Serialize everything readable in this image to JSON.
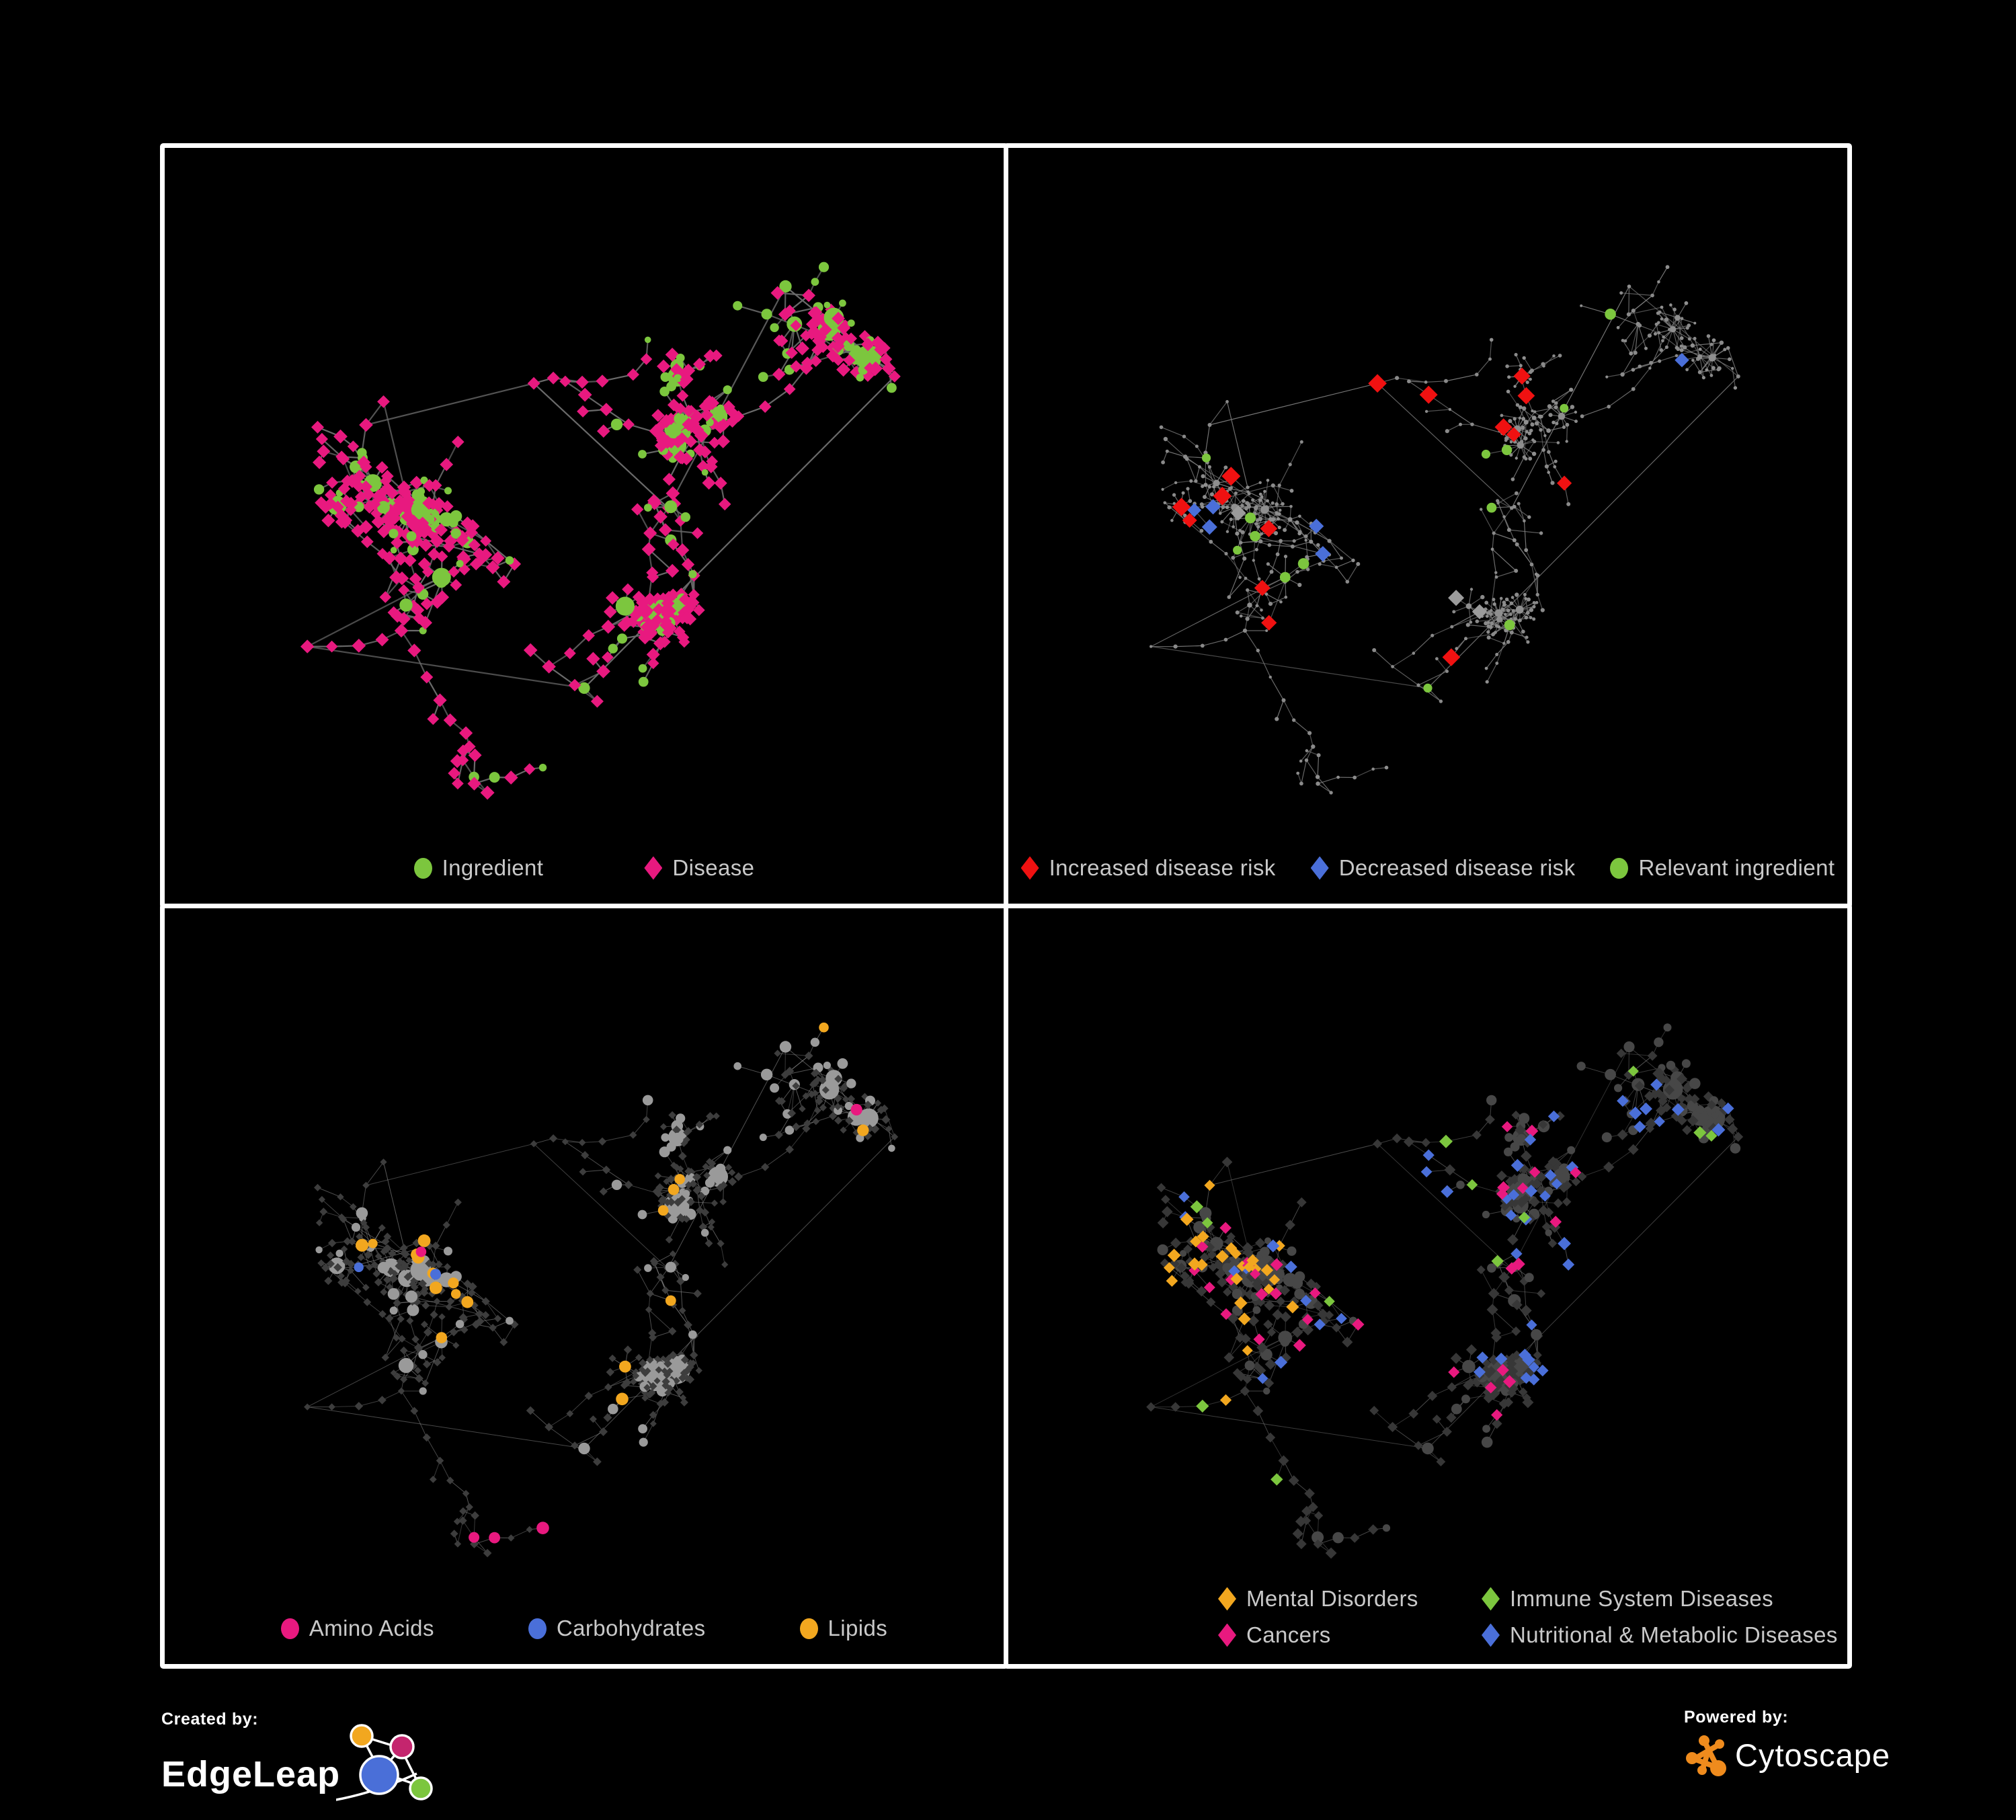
{
  "figure": {
    "background": "#000000",
    "panel_border_color": "#ffffff",
    "legend_text_color": "#c9c9c9"
  },
  "network_layout": {
    "seed": 42,
    "nodes": 540,
    "roots": [
      [
        0.24,
        0.4
      ],
      [
        0.44,
        0.34
      ],
      [
        0.6,
        0.52
      ],
      [
        0.74,
        0.2
      ],
      [
        0.87,
        0.33
      ],
      [
        0.5,
        0.78
      ],
      [
        0.17,
        0.72
      ],
      [
        0.33,
        0.62
      ]
    ],
    "budgets": [
      0.24,
      0.2,
      0.12,
      0.09,
      0.07,
      0.1,
      0.09,
      0.09
    ],
    "recency": 0.45,
    "step": 36,
    "hub_chance": 0.07,
    "fan_min": 5,
    "fan_max": 18,
    "chain_chance": 0.18,
    "extra_edges": 90,
    "max_link": 150,
    "hub_degree": 5,
    "ingredient_ratio": 0.24
  },
  "panels": [
    {
      "name": "ingredient-disease-network",
      "legend": [
        {
          "label": "Ingredient",
          "shape": "circle",
          "color": "#7cc63e"
        },
        {
          "label": "Disease",
          "shape": "diamond",
          "color": "#e8197f"
        }
      ],
      "style": {
        "edge": {
          "color": "#6a6a6a",
          "width": 2.2,
          "opacity": 0.9
        },
        "ingredient": [
          {
            "shape": "circle",
            "color": "#7cc63e",
            "min": 5.5,
            "max": 9,
            "weight": 1,
            "hub_scale": 0.12,
            "top": true
          }
        ],
        "disease": [
          {
            "shape": "diamond",
            "color": "#e8197f",
            "min": 8.5,
            "max": 10.5,
            "weight": 1,
            "top": true
          }
        ]
      }
    },
    {
      "name": "disease-risk-network",
      "legend": [
        {
          "label": "Increased disease risk",
          "shape": "diamond",
          "color": "#f01111"
        },
        {
          "label": "Decreased disease risk",
          "shape": "diamond",
          "color": "#4a6fd9"
        },
        {
          "label": "Relevant ingredient",
          "shape": "circle",
          "color": "#7cc63e"
        }
      ],
      "style": {
        "edge": {
          "color": "#787878",
          "width": 1.2,
          "opacity": 0.8
        },
        "ingredient": [
          {
            "shape": "circle",
            "color": "#8f8f8f",
            "min": 2.4,
            "max": 3.6,
            "weight": 10,
            "hub_scale": 0.07
          },
          {
            "shape": "circle",
            "color": "#7cc63e",
            "min": 6.5,
            "max": 8.5,
            "weight": 1.7,
            "focus": [
              0.38,
              0.42,
              0.38
            ],
            "top": true
          }
        ],
        "disease": [
          {
            "shape": "circle",
            "color": "#8a8a8a",
            "min": 2.2,
            "max": 3.2,
            "weight": 30
          },
          {
            "shape": "diamond",
            "color": "#f01111",
            "min": 11,
            "max": 14,
            "weight": 2.4,
            "focus": [
              0.42,
              0.4,
              0.3
            ],
            "top": true
          },
          {
            "shape": "diamond",
            "color": "#4a6fd9",
            "min": 10,
            "max": 12,
            "weight": 0.7,
            "focus": [
              0.38,
              0.38,
              0.42
            ],
            "top": true
          },
          {
            "shape": "diamond",
            "color": "#9b9b9b",
            "min": 10,
            "max": 12,
            "weight": 0.6,
            "focus": [
              0.45,
              0.42,
              0.26
            ],
            "top": true
          }
        ]
      }
    },
    {
      "name": "macronutrient-network",
      "legend": [
        {
          "label": "Amino Acids",
          "shape": "circle",
          "color": "#e8197f"
        },
        {
          "label": "Carbohydrates",
          "shape": "circle",
          "color": "#4a6fd9"
        },
        {
          "label": "Lipids",
          "shape": "circle",
          "color": "#f2a71f"
        }
      ],
      "style": {
        "edge": {
          "color": "#8f8f8f",
          "width": 1.0,
          "opacity": 0.5
        },
        "ingredient": [
          {
            "shape": "circle",
            "color": "#9a9a9a",
            "min": 6,
            "max": 9.5,
            "weight": 5,
            "hub_scale": 0.1
          },
          {
            "shape": "circle",
            "color": "#f2a71f",
            "min": 7,
            "max": 10,
            "weight": 2.8,
            "focus": [
              0.42,
              0.3,
              0.34
            ],
            "top": true
          },
          {
            "shape": "circle",
            "color": "#4a6fd9",
            "min": 7,
            "max": 9,
            "weight": 1.0,
            "focus": [
              0.42,
              0.33,
              0.17
            ],
            "top": true
          },
          {
            "shape": "circle",
            "color": "#e8197f",
            "min": 7,
            "max": 10,
            "weight": 0.55,
            "top": true
          }
        ],
        "disease": [
          {
            "shape": "diamond",
            "color": "#3d3d3d",
            "min": 5,
            "max": 6.5,
            "weight": 1
          }
        ]
      }
    },
    {
      "name": "disease-category-network",
      "legend": [
        {
          "label": "Mental Disorders",
          "shape": "diamond",
          "color": "#f2a71f"
        },
        {
          "label": "Immune System Diseases",
          "shape": "diamond",
          "color": "#7cc63e"
        },
        {
          "label": "Cancers",
          "shape": "diamond",
          "color": "#e8197f"
        },
        {
          "label": "Nutritional & Metabolic Diseases",
          "shape": "diamond",
          "color": "#4a6fd9"
        }
      ],
      "style": {
        "edge": {
          "color": "#6e6e6e",
          "width": 1.0,
          "opacity": 0.55
        },
        "ingredient": [
          {
            "shape": "circle",
            "color": "#474747",
            "min": 6,
            "max": 10,
            "weight": 1,
            "hub_scale": 0.08
          }
        ],
        "disease": [
          {
            "shape": "diamond",
            "color": "#373737",
            "min": 6.5,
            "max": 8.5,
            "weight": 6
          },
          {
            "shape": "diamond",
            "color": "#f2a71f",
            "min": 8,
            "max": 10,
            "weight": 2.7,
            "focus": [
              0.17,
              0.52,
              0.17
            ],
            "top": true
          },
          {
            "shape": "diamond",
            "color": "#e8197f",
            "min": 8,
            "max": 10,
            "weight": 2.2,
            "focus": [
              0.47,
              0.52,
              0.2
            ],
            "top": true
          },
          {
            "shape": "diamond",
            "color": "#4a6fd9",
            "min": 8,
            "max": 10,
            "weight": 1.7,
            "focus": [
              0.72,
              0.4,
              0.45
            ],
            "top": true
          },
          {
            "shape": "diamond",
            "color": "#7cc63e",
            "min": 8,
            "max": 10,
            "weight": 0.25,
            "top": true
          }
        ]
      }
    }
  ],
  "footer": {
    "created_by_label": "Created by:",
    "created_by_name": "EdgeLeap",
    "powered_by_label": "Powered by:",
    "powered_by_name": "Cytoscape",
    "edgeleap_logo_colors": {
      "orange": "#f2a71f",
      "magenta": "#c4256e",
      "blue": "#4a6fd8",
      "green": "#7cc63e"
    },
    "cytoscape_logo_color": "#ef8b1d"
  }
}
